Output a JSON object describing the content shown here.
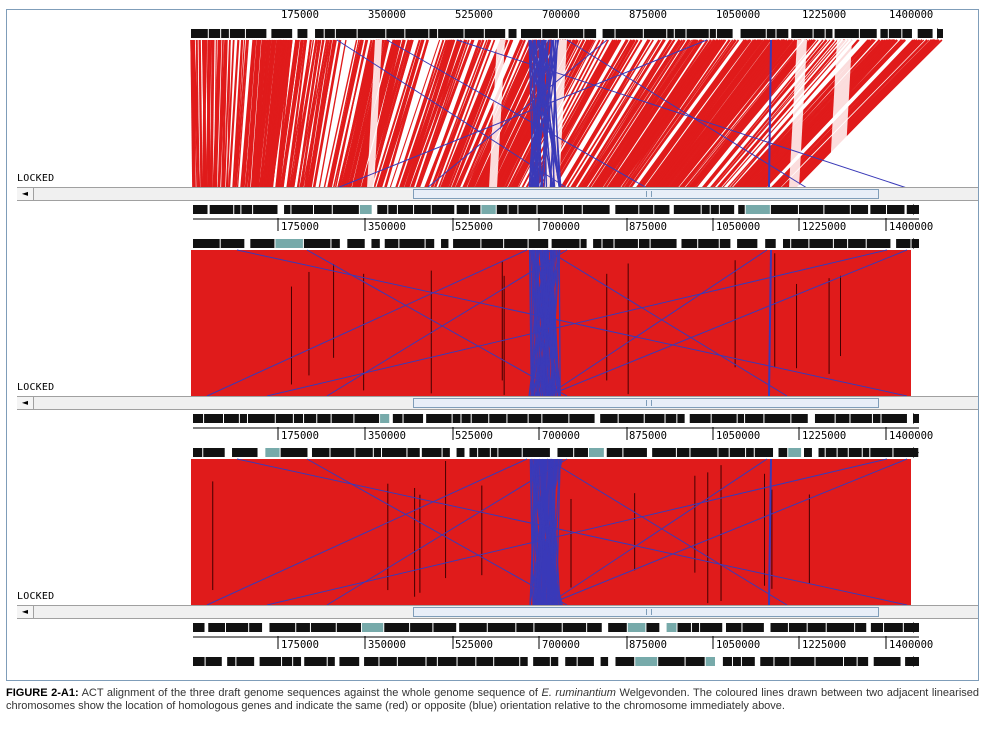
{
  "panel": {
    "locked_label": "LOCKED",
    "scroll_left_glyph": "◄",
    "scroll_grip_glyph": "||",
    "ticks": [
      "175000",
      "350000",
      "525000",
      "700000",
      "875000",
      "1050000",
      "1225000",
      "1400000"
    ],
    "top_partial_ticks": [
      "175000",
      "350000",
      "525000",
      "700000",
      "875000",
      "1050000",
      "1225000",
      "1400000"
    ]
  },
  "colors": {
    "same_orientation": "#e01b1b",
    "opposite_orientation": "#3a3ab8",
    "gene_track": "#111111",
    "frame_border": "#7f9db9"
  },
  "caption": {
    "label": "FIGURE 2-A1:",
    "text_before": " ACT alignment of the three draft genome sequences against the whole genome sequence of ",
    "species": "E. ruminantium",
    "text_after": " Welgevonden. The coloured lines drawn between two adjacent linearised chromosomes show the location of homologous genes and indicate the same (red) or opposite (blue) orientation relative to the chromosome immediately above."
  }
}
